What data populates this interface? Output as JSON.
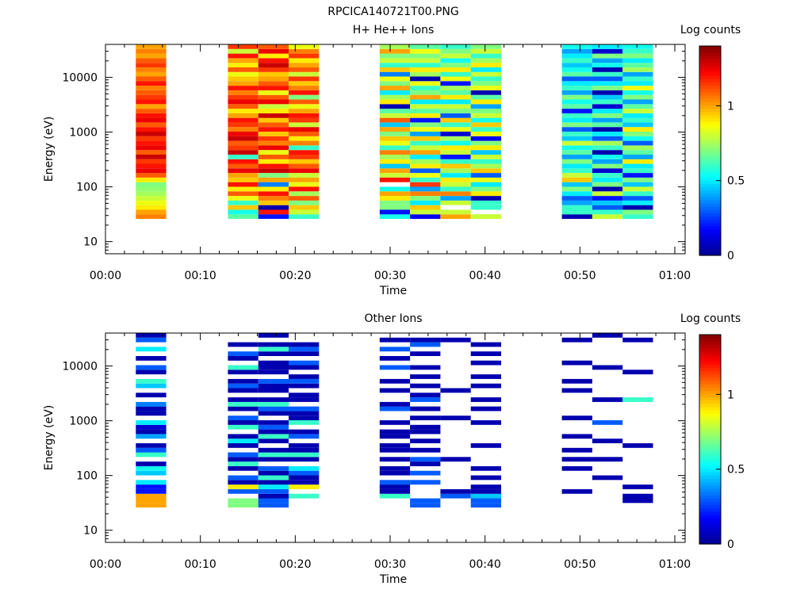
{
  "title": "RPCICA140721T00.PNG",
  "colors": {
    "jet": [
      "#00008f",
      "#0000ff",
      "#0080ff",
      "#00ffff",
      "#80ff80",
      "#ffff00",
      "#ff8000",
      "#ff0000",
      "#800000"
    ]
  },
  "chart_data": [
    {
      "type": "heatmap",
      "title": "H+ He++ Ions",
      "xlabel": "Time",
      "ylabel": "Energy (eV)",
      "colorbar_label": "Log counts",
      "x_ticks": [
        "00:00",
        "00:10",
        "00:20",
        "00:30",
        "00:40",
        "00:50",
        "01:00"
      ],
      "x_range_minutes": [
        0,
        60
      ],
      "y_ticks": [
        "10",
        "100",
        "1000",
        "10000"
      ],
      "y_scale": "log",
      "y_range": [
        6,
        40000
      ],
      "color_range": [
        0,
        1.4
      ],
      "colorbar_ticks": [
        "0",
        "0.5",
        "1"
      ],
      "time_bins_start_minutes": [
        3.2,
        12.9,
        16.1,
        19.3,
        28.9,
        32.1,
        35.3,
        38.5,
        48.1,
        51.3,
        54.5
      ],
      "time_bin_width_minutes": 3.2,
      "time_bin_values": [
        [
          1.05,
          1.0,
          0.9,
          0.85,
          0.8,
          0.75,
          0.72,
          0.7,
          0.9,
          1.1,
          1.25,
          1.2,
          1.15,
          1.3,
          1.1,
          1.25,
          1.2,
          1.15,
          1.3,
          1.2,
          1.1,
          1.25,
          1.2,
          1.1,
          1.0,
          1.2,
          1.15,
          1.1,
          1.05,
          1.2,
          1.1,
          1.0,
          1.05,
          1.15,
          1.1,
          1.0,
          1.05,
          1.0
        ],
        [
          0.65,
          0.55,
          0.95,
          0.6,
          0.85,
          1.1,
          0.9,
          1.2,
          0.95,
          1.0,
          1.25,
          1.1,
          1.2,
          0.6,
          1.3,
          1.15,
          1.1,
          1.3,
          1.25,
          1.05,
          1.15,
          1.2,
          1.0,
          0.9,
          1.1,
          1.25,
          1.15,
          1.05,
          1.2,
          1.0,
          0.95,
          0.85,
          1.1,
          0.9,
          1.0,
          1.2,
          0.8,
          1.15
        ],
        [
          0.2,
          1.2,
          0.05,
          0.95,
          1.05,
          1.2,
          0.9,
          0.35,
          1.0,
          0.7,
          1.3,
          1.2,
          0.9,
          1.1,
          0.85,
          1.25,
          1.05,
          1.15,
          0.95,
          1.2,
          1.1,
          0.95,
          1.3,
          0.9,
          0.8,
          1.25,
          1.1,
          0.85,
          1.2,
          1.1,
          1.0,
          0.95,
          1.15,
          1.3,
          1.2,
          0.9,
          1.25,
          1.1
        ],
        [
          0.6,
          0.8,
          0.95,
          0.7,
          1.1,
          0.75,
          1.2,
          0.85,
          1.0,
          0.8,
          1.25,
          1.1,
          0.95,
          1.15,
          1.2,
          0.6,
          1.05,
          0.9,
          1.1,
          1.25,
          0.8,
          1.15,
          1.2,
          1.0,
          0.85,
          1.1,
          0.7,
          1.2,
          1.05,
          0.95,
          1.15,
          0.8,
          1.1,
          1.0,
          0.9,
          1.15,
          1.05,
          0.85
        ],
        [
          0.55,
          0.2,
          0.7,
          0.7,
          0.9,
          1.0,
          0.55,
          null,
          1.2,
          0.8,
          1.0,
          0.45,
          0.9,
          0.75,
          1.05,
          0.6,
          0.85,
          0.95,
          0.7,
          1.0,
          0.45,
          1.1,
          0.8,
          0.65,
          0.05,
          0.9,
          0.75,
          0.5,
          1.0,
          0.7,
          0.85,
          0.35,
          0.95,
          0.6,
          0.8,
          0.7,
          1.0,
          0.75
        ],
        [
          0.15,
          0.8,
          0.95,
          0.5,
          0.7,
          1.05,
          0.4,
          1.15,
          0.6,
          0.85,
          0.3,
          0.9,
          0.75,
          0.5,
          1.0,
          0.8,
          0.6,
          0.95,
          0.4,
          0.85,
          0.7,
          0.2,
          0.9,
          0.65,
          0.8,
          0.5,
          1.0,
          0.7,
          0.6,
          0.85,
          0.05,
          0.75,
          0.9,
          0.6,
          0.8,
          0.7,
          0.85,
          0.65
        ],
        [
          1.0,
          0.8,
          null,
          0.8,
          0.4,
          1.05,
          0.6,
          0.8,
          0.9,
          0.5,
          0.75,
          0.95,
          0.6,
          0.2,
          0.8,
          0.9,
          0.55,
          0.75,
          0.1,
          0.85,
          0.6,
          0.95,
          0.3,
          0.7,
          0.8,
          0.5,
          0.9,
          0.65,
          0.75,
          0.2,
          0.85,
          0.6,
          0.9,
          0.7,
          0.55,
          0.8,
          0.7,
          0.6
        ],
        [
          0.8,
          null,
          0.6,
          0.6,
          0.05,
          0.9,
          0.7,
          0.5,
          0.85,
          0.3,
          0.95,
          0.75,
          0.6,
          0.8,
          0.45,
          0.9,
          0.7,
          0.15,
          0.85,
          0.6,
          0.95,
          0.55,
          0.8,
          0.7,
          0.4,
          0.9,
          0.65,
          0.05,
          0.85,
          0.7,
          0.6,
          0.8,
          0.5,
          0.9,
          0.75,
          0.6,
          0.8,
          0.7
        ],
        [
          0.05,
          0.6,
          0.6,
          0.4,
          0.3,
          0.5,
          0.7,
          0.45,
          0.95,
          0.8,
          0.6,
          0.5,
          0.7,
          0.4,
          0.65,
          0.55,
          0.8,
          0.45,
          0.6,
          0.3,
          0.7,
          0.5,
          0.6,
          0.2,
          0.65,
          0.55,
          0.7,
          0.4,
          0.6,
          0.5,
          0.3,
          0.65,
          0.55,
          0.45,
          0.6,
          0.5,
          0.4,
          0.55
        ],
        [
          0.8,
          0.6,
          0.3,
          0.45,
          0.2,
          0.8,
          0.05,
          0.7,
          0.5,
          0.6,
          0.1,
          0.7,
          0.4,
          0.55,
          0.05,
          0.6,
          0.75,
          0.3,
          0.5,
          0.05,
          0.65,
          0.4,
          0.7,
          0.5,
          0.1,
          0.6,
          0.45,
          0.05,
          0.7,
          0.5,
          0.3,
          0.6,
          0.05,
          0.55,
          0.4,
          0.7,
          0.1,
          0.5
        ],
        [
          0.6,
          0.7,
          0.05,
          0.5,
          0.3,
          0.6,
          0.8,
          0.45,
          0.7,
          0.2,
          0.6,
          0.5,
          0.9,
          0.4,
          0.65,
          0.75,
          0.3,
          0.55,
          0.7,
          0.9,
          0.45,
          0.6,
          0.5,
          0.8,
          0.65,
          0.4,
          0.7,
          0.55,
          0.85,
          0.5,
          0.6,
          0.4,
          0.75,
          0.65,
          0.5,
          0.7,
          0.6,
          0.55
        ]
      ]
    },
    {
      "type": "heatmap",
      "title": "Other Ions",
      "xlabel": "Time",
      "ylabel": "Energy (eV)",
      "colorbar_label": "Log counts",
      "x_ticks": [
        "00:00",
        "00:10",
        "00:20",
        "00:30",
        "00:40",
        "00:50",
        "01:00"
      ],
      "x_range_minutes": [
        0,
        60
      ],
      "y_ticks": [
        "10",
        "100",
        "1000",
        "10000"
      ],
      "y_scale": "log",
      "y_range": [
        6,
        40000
      ],
      "color_range": [
        0,
        1.4
      ],
      "colorbar_ticks": [
        "0",
        "0.5",
        "1"
      ],
      "time_bins_start_minutes": [
        3.2,
        12.9,
        16.1,
        19.3,
        28.9,
        32.1,
        35.3,
        38.5,
        48.1,
        51.3,
        54.5
      ],
      "time_bin_width_minutes": 3.2,
      "time_bin_values": [
        [
          1.0,
          1.0,
          1.0,
          0.2,
          0.2,
          0.5,
          null,
          0.45,
          0.55,
          0.05,
          null,
          0.6,
          0.3,
          0.05,
          null,
          0.4,
          0.05,
          0.1,
          0.5,
          null,
          0.05,
          0.05,
          0.35,
          null,
          0.05,
          null,
          0.45,
          0.6,
          null,
          0.05,
          0.3,
          null,
          0.05,
          null,
          0.5,
          null,
          0.3,
          0.05
        ],
        [
          0.7,
          0.7,
          null,
          0.3,
          0.9,
          0.05,
          0.3,
          null,
          0.05,
          0.6,
          0.05,
          0.3,
          null,
          0.05,
          0.5,
          0.05,
          null,
          0.6,
          0.05,
          0.3,
          null,
          0.05,
          0.6,
          0.05,
          null,
          0.05,
          0.3,
          0.05,
          null,
          0.05,
          0.6,
          null,
          0.05,
          0.3,
          null,
          0.05,
          null,
          null
        ],
        [
          0.3,
          0.3,
          0.05,
          0.3,
          0.5,
          0.05,
          0.6,
          0.05,
          0.3,
          null,
          0.05,
          0.6,
          0.05,
          null,
          0.05,
          0.6,
          0.05,
          0.3,
          0.05,
          null,
          0.05,
          0.3,
          0.6,
          0.05,
          null,
          0.05,
          0.05,
          0.3,
          null,
          0.05,
          0.05,
          0.05,
          null,
          0.05,
          0.6,
          0.05,
          null,
          0.05
        ],
        [
          null,
          null,
          0.6,
          null,
          0.9,
          0.05,
          0.05,
          0.3,
          0.5,
          null,
          0.05,
          0.6,
          0.05,
          0.05,
          null,
          0.3,
          0.05,
          null,
          0.6,
          0.05,
          0.05,
          0.3,
          null,
          0.05,
          0.05,
          null,
          0.05,
          0.3,
          0.05,
          null,
          0.05,
          0.3,
          null,
          0.05,
          0.3,
          0.05,
          null,
          null
        ],
        [
          null,
          null,
          0.6,
          0.05,
          0.05,
          0.3,
          null,
          0.05,
          0.05,
          null,
          0.05,
          null,
          0.05,
          0.05,
          null,
          0.05,
          0.05,
          null,
          0.05,
          null,
          null,
          0.3,
          0.05,
          null,
          null,
          0.05,
          null,
          0.05,
          null,
          null,
          0.3,
          null,
          0.05,
          null,
          0.3,
          null,
          0.05,
          null
        ],
        [
          0.3,
          0.3,
          null,
          null,
          null,
          0.3,
          null,
          0.3,
          null,
          0.05,
          0.3,
          null,
          0.05,
          null,
          0.05,
          null,
          0.05,
          0.05,
          null,
          0.05,
          null,
          0.05,
          null,
          0.3,
          0.05,
          null,
          0.05,
          null,
          0.05,
          null,
          0.05,
          null,
          null,
          0.05,
          null,
          0.3,
          0.05,
          null
        ],
        [
          null,
          null,
          0.3,
          0.05,
          null,
          null,
          null,
          null,
          null,
          null,
          0.05,
          null,
          null,
          null,
          null,
          null,
          null,
          null,
          null,
          0.05,
          null,
          null,
          null,
          null,
          null,
          0.05,
          null,
          null,
          null,
          null,
          null,
          null,
          null,
          null,
          null,
          null,
          0.05,
          null
        ],
        [
          0.3,
          0.3,
          0.45,
          0.05,
          0.05,
          null,
          0.05,
          null,
          0.05,
          null,
          null,
          null,
          null,
          0.05,
          null,
          null,
          null,
          null,
          0.05,
          null,
          null,
          0.05,
          null,
          0.05,
          null,
          null,
          0.05,
          null,
          0.05,
          null,
          null,
          0.05,
          null,
          0.05,
          null,
          0.05,
          null,
          null
        ],
        [
          null,
          null,
          null,
          0.05,
          null,
          null,
          null,
          null,
          0.05,
          null,
          0.05,
          null,
          0.05,
          null,
          null,
          0.05,
          null,
          null,
          null,
          0.05,
          null,
          null,
          null,
          null,
          null,
          0.05,
          null,
          0.05,
          null,
          null,
          null,
          0.05,
          null,
          null,
          null,
          null,
          0.05,
          null
        ],
        [
          null,
          null,
          null,
          null,
          null,
          null,
          0.05,
          null,
          null,
          null,
          0.05,
          null,
          null,
          null,
          0.05,
          null,
          null,
          null,
          0.3,
          null,
          null,
          null,
          null,
          0.05,
          null,
          null,
          null,
          null,
          null,
          null,
          0.05,
          null,
          null,
          null,
          null,
          null,
          null,
          0.05
        ],
        [
          null,
          0.05,
          0.05,
          null,
          0.05,
          null,
          null,
          null,
          null,
          null,
          null,
          null,
          null,
          0.05,
          null,
          null,
          null,
          null,
          null,
          null,
          null,
          null,
          null,
          0.6,
          null,
          null,
          null,
          null,
          null,
          0.05,
          null,
          null,
          null,
          null,
          null,
          null,
          0.05,
          null
        ]
      ]
    }
  ]
}
